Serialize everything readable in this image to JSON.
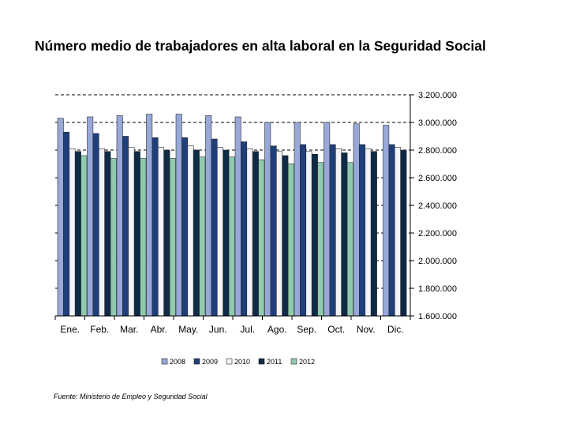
{
  "title": "Número medio de trabajadores en alta laboral en la Seguridad Social",
  "source": "Fuente: Ministerio de Empleo y Seguridad Social",
  "colors": {
    "2008": "#98a8d8",
    "2009": "#1f3f7a",
    "2010": "#f2f4f8",
    "2011": "#0d2a47",
    "2012": "#8fcaae"
  },
  "chart_data": {
    "type": "bar",
    "title": "Número medio de trabajadores en alta laboral en la Seguridad Social",
    "xlabel": "",
    "ylabel": "",
    "categories": [
      "Ene.",
      "Feb.",
      "Mar.",
      "Abr.",
      "May.",
      "Jun.",
      "Jul.",
      "Ago.",
      "Sep.",
      "Oct.",
      "Nov.",
      "Dic."
    ],
    "ylim": [
      1600000,
      3200000
    ],
    "yticks": [
      1600000,
      1800000,
      2000000,
      2200000,
      2400000,
      2600000,
      2800000,
      3000000,
      3200000
    ],
    "ytick_labels": [
      "1.600.000",
      "1.800.000",
      "2.000.000",
      "2.200.000",
      "2.400.000",
      "2.600.000",
      "2.800.000",
      "3.000.000",
      "3.200.000"
    ],
    "y_axis_side": "right",
    "grid": "dashed horizontal",
    "legend_position": "bottom",
    "series": [
      {
        "name": "2008",
        "values": [
          3030000,
          3040000,
          3050000,
          3060000,
          3060000,
          3050000,
          3040000,
          3000000,
          3000000,
          3000000,
          2990000,
          2980000
        ]
      },
      {
        "name": "2009",
        "values": [
          2930000,
          2920000,
          2900000,
          2890000,
          2890000,
          2880000,
          2860000,
          2830000,
          2840000,
          2840000,
          2840000,
          2840000
        ]
      },
      {
        "name": "2010",
        "values": [
          2810000,
          2810000,
          2820000,
          2820000,
          2830000,
          2820000,
          2810000,
          2790000,
          2790000,
          2810000,
          2810000,
          2820000
        ]
      },
      {
        "name": "2011",
        "values": [
          2790000,
          2790000,
          2790000,
          2800000,
          2800000,
          2800000,
          2790000,
          2760000,
          2770000,
          2780000,
          2790000,
          2800000
        ]
      },
      {
        "name": "2012",
        "values": [
          2760000,
          2740000,
          2740000,
          2740000,
          2750000,
          2750000,
          2730000,
          2700000,
          2710000,
          2710000,
          null,
          null
        ]
      }
    ]
  }
}
